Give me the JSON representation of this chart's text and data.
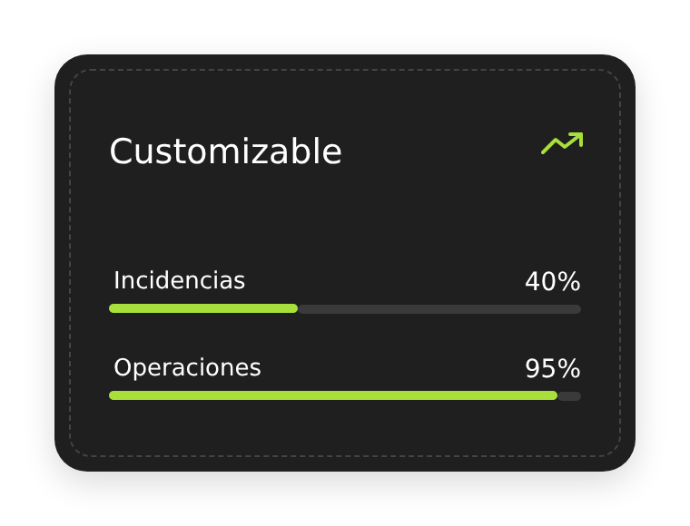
{
  "chart_data": {
    "type": "bar",
    "orientation": "horizontal",
    "title": "Customizable",
    "categories": [
      "Incidencias",
      "Operaciones"
    ],
    "values": [
      40,
      95
    ],
    "value_labels": [
      "40%",
      "95%"
    ],
    "color": "#a8df3a",
    "xlim": [
      0,
      100
    ]
  }
}
